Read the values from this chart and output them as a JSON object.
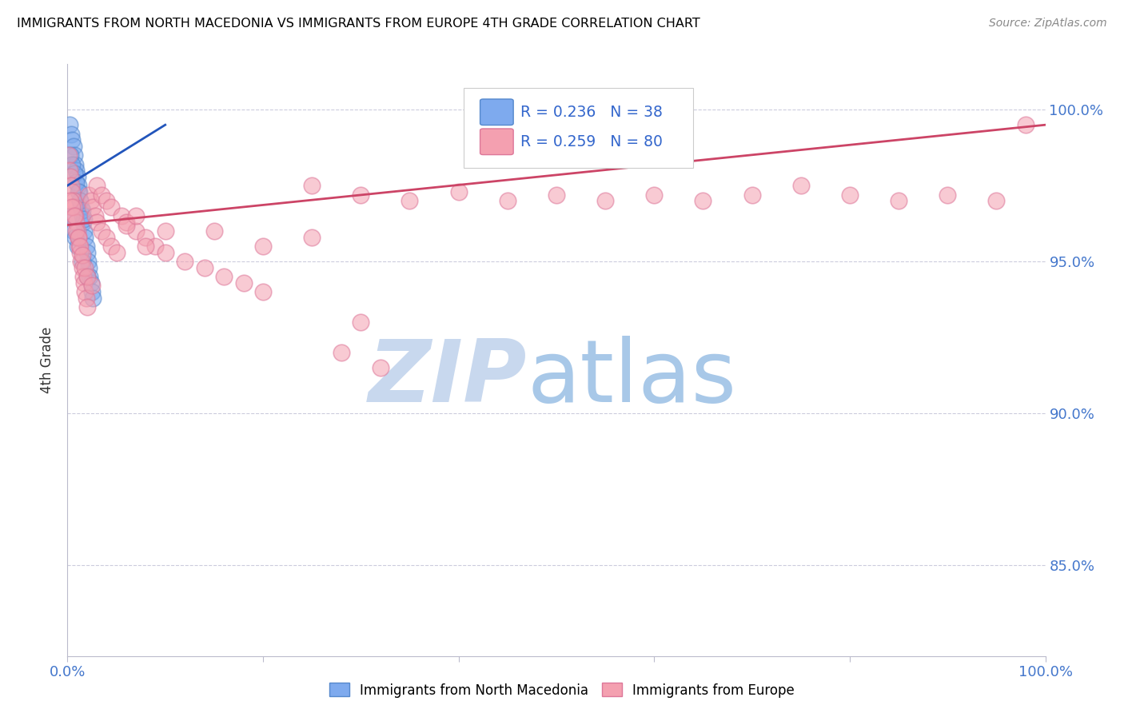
{
  "title": "IMMIGRANTS FROM NORTH MACEDONIA VS IMMIGRANTS FROM EUROPE 4TH GRADE CORRELATION CHART",
  "source": "Source: ZipAtlas.com",
  "ylabel": "4th Grade",
  "legend_blue_R": "0.236",
  "legend_blue_N": "38",
  "legend_pink_R": "0.259",
  "legend_pink_N": "80",
  "legend_label_blue": "Immigrants from North Macedonia",
  "legend_label_pink": "Immigrants from Europe",
  "blue_color": "#7eaaee",
  "pink_color": "#f4a0b0",
  "blue_edge_color": "#5588cc",
  "pink_edge_color": "#dd7799",
  "blue_line_color": "#2255bb",
  "pink_line_color": "#cc4466",
  "blue_scatter": [
    [
      0.2,
      99.5
    ],
    [
      0.4,
      99.2
    ],
    [
      0.5,
      99.0
    ],
    [
      0.6,
      98.8
    ],
    [
      0.7,
      98.5
    ],
    [
      0.8,
      98.2
    ],
    [
      0.9,
      98.0
    ],
    [
      1.0,
      97.8
    ],
    [
      1.1,
      97.5
    ],
    [
      1.2,
      97.3
    ],
    [
      1.3,
      97.0
    ],
    [
      1.4,
      96.8
    ],
    [
      1.5,
      96.5
    ],
    [
      1.6,
      96.3
    ],
    [
      1.7,
      96.0
    ],
    [
      1.8,
      95.8
    ],
    [
      1.9,
      95.5
    ],
    [
      2.0,
      95.3
    ],
    [
      2.1,
      95.0
    ],
    [
      2.2,
      94.8
    ],
    [
      2.3,
      94.5
    ],
    [
      2.4,
      94.3
    ],
    [
      2.5,
      94.0
    ],
    [
      2.6,
      93.8
    ],
    [
      0.3,
      98.5
    ],
    [
      0.5,
      98.2
    ],
    [
      0.7,
      97.9
    ],
    [
      0.9,
      97.6
    ],
    [
      1.1,
      97.3
    ],
    [
      1.3,
      97.0
    ],
    [
      1.5,
      96.7
    ],
    [
      1.7,
      96.4
    ],
    [
      0.4,
      96.5
    ],
    [
      0.6,
      96.0
    ],
    [
      0.8,
      95.8
    ],
    [
      1.0,
      95.5
    ],
    [
      1.5,
      95.0
    ],
    [
      2.0,
      94.5
    ]
  ],
  "pink_scatter": [
    [
      0.1,
      98.5
    ],
    [
      0.2,
      98.0
    ],
    [
      0.3,
      97.8
    ],
    [
      0.4,
      97.5
    ],
    [
      0.5,
      97.3
    ],
    [
      0.6,
      97.0
    ],
    [
      0.7,
      96.8
    ],
    [
      0.8,
      96.5
    ],
    [
      0.9,
      96.3
    ],
    [
      1.0,
      96.0
    ],
    [
      1.1,
      95.8
    ],
    [
      1.2,
      95.5
    ],
    [
      1.3,
      95.3
    ],
    [
      1.4,
      95.0
    ],
    [
      1.5,
      94.8
    ],
    [
      1.6,
      94.5
    ],
    [
      1.7,
      94.3
    ],
    [
      1.8,
      94.0
    ],
    [
      1.9,
      93.8
    ],
    [
      2.0,
      93.5
    ],
    [
      2.2,
      97.2
    ],
    [
      2.4,
      97.0
    ],
    [
      2.6,
      96.8
    ],
    [
      2.8,
      96.5
    ],
    [
      3.0,
      96.3
    ],
    [
      3.5,
      96.0
    ],
    [
      4.0,
      95.8
    ],
    [
      4.5,
      95.5
    ],
    [
      5.0,
      95.3
    ],
    [
      0.3,
      97.0
    ],
    [
      0.5,
      96.8
    ],
    [
      0.7,
      96.5
    ],
    [
      0.9,
      96.0
    ],
    [
      1.1,
      95.8
    ],
    [
      1.3,
      95.5
    ],
    [
      1.5,
      95.2
    ],
    [
      1.8,
      94.8
    ],
    [
      2.0,
      94.5
    ],
    [
      2.5,
      94.2
    ],
    [
      3.0,
      97.5
    ],
    [
      3.5,
      97.2
    ],
    [
      4.0,
      97.0
    ],
    [
      4.5,
      96.8
    ],
    [
      5.5,
      96.5
    ],
    [
      6.0,
      96.3
    ],
    [
      7.0,
      96.0
    ],
    [
      8.0,
      95.8
    ],
    [
      9.0,
      95.5
    ],
    [
      10.0,
      95.3
    ],
    [
      12.0,
      95.0
    ],
    [
      14.0,
      94.8
    ],
    [
      16.0,
      94.5
    ],
    [
      18.0,
      94.3
    ],
    [
      20.0,
      94.0
    ],
    [
      25.0,
      97.5
    ],
    [
      30.0,
      97.2
    ],
    [
      35.0,
      97.0
    ],
    [
      40.0,
      97.3
    ],
    [
      45.0,
      97.0
    ],
    [
      50.0,
      97.2
    ],
    [
      55.0,
      97.0
    ],
    [
      60.0,
      97.2
    ],
    [
      65.0,
      97.0
    ],
    [
      70.0,
      97.2
    ],
    [
      75.0,
      97.5
    ],
    [
      80.0,
      97.2
    ],
    [
      85.0,
      97.0
    ],
    [
      90.0,
      97.2
    ],
    [
      95.0,
      97.0
    ],
    [
      98.0,
      99.5
    ],
    [
      6.0,
      96.2
    ],
    [
      7.0,
      96.5
    ],
    [
      8.0,
      95.5
    ],
    [
      10.0,
      96.0
    ],
    [
      15.0,
      96.0
    ],
    [
      20.0,
      95.5
    ],
    [
      25.0,
      95.8
    ],
    [
      28.0,
      92.0
    ],
    [
      32.0,
      91.5
    ],
    [
      30.0,
      93.0
    ]
  ],
  "xlim": [
    0.0,
    100.0
  ],
  "ylim": [
    82.0,
    101.5
  ],
  "yticks": [
    85.0,
    90.0,
    95.0,
    100.0
  ],
  "xticks": [
    0.0,
    20.0,
    40.0,
    60.0,
    80.0,
    100.0
  ],
  "watermark_zip_color": "#c8d8ee",
  "watermark_atlas_color": "#a8c8e8"
}
